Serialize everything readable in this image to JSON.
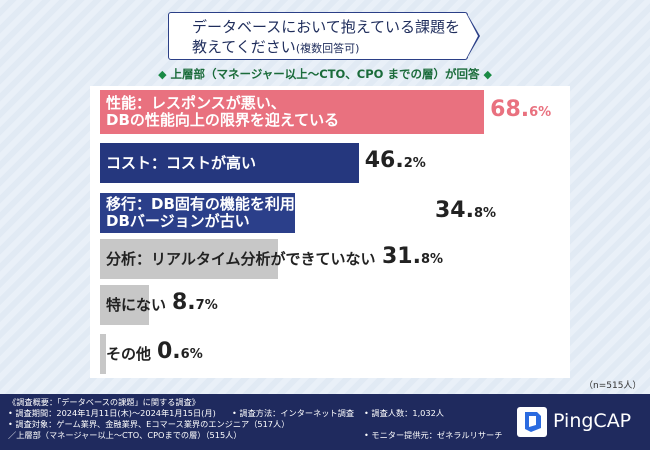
{
  "header": {
    "title_line1": "データベースにおいて抱えている課題を",
    "title_line2_main": "教えてください",
    "title_line2_note": "(複数回答可)",
    "subtitle": "上層部（マネージャー以上〜CTO、CPO までの層）が回答",
    "diamond": "◆"
  },
  "chart_data": {
    "type": "bar",
    "orientation": "horizontal",
    "categories": [
      "性能：レスポンスが悪い、DBの性能向上の限界を迎えている",
      "コスト：コストが高い",
      "移行：DB固有の機能を利用して移行が難しい、DBバージョンが古い",
      "分析：リアルタイム分析ができていない",
      "特にない",
      "その他"
    ],
    "values": [
      68.6,
      46.2,
      34.8,
      31.8,
      8.7,
      0.6
    ],
    "unit": "%",
    "xlim": [
      0,
      100
    ],
    "colors": [
      "#e9717f",
      "#25377e",
      "#2b3f8a",
      "#c7c7c7",
      "#c7c7c7",
      "#c7c7c7"
    ],
    "grid": false,
    "legend": "none"
  },
  "bars": [
    {
      "label_lines": [
        "性能：レスポンスが悪い、",
        "DBの性能向上の限界を迎えている"
      ],
      "pct_int": "68.",
      "pct_dec": "6%",
      "pct_color": "#e9717f"
    },
    {
      "label_lines": [
        "コスト：コストが高い"
      ],
      "pct_int": "46.",
      "pct_dec": "2%",
      "pct_color": "#222222"
    },
    {
      "label_lines": [
        "移行：DB固有の機能を利用して移行が難しい、",
        "DBバージョンが古い"
      ],
      "pct_int": "34.",
      "pct_dec": "8%",
      "pct_color": "#222222"
    },
    {
      "label_lines": [
        "分析：リアルタイム分析ができていない"
      ],
      "pct_int": "31.",
      "pct_dec": "8%",
      "pct_color": "#222222"
    },
    {
      "label_lines": [
        "特にない"
      ],
      "pct_int": "8.",
      "pct_dec": "7%",
      "pct_color": "#222222"
    },
    {
      "label_lines": [
        "その他"
      ],
      "pct_int": "0.",
      "pct_dec": "6%",
      "pct_color": "#222222"
    }
  ],
  "n_note": "（n=515人）",
  "footer": {
    "line1": "《調査概要：「データベースの課題」に関する調査》",
    "period": "• 調査期間：2024年1月11日(木)〜2024年1月15日(月)",
    "method": "• 調査方法：インターネット調査",
    "count": "• 調査人数：1,032人",
    "target": "• 調査対象：ゲーム業界、金融業界、Eコマース業界のエンジニア（517人）",
    "target2": "／上層部（マネージャー以上〜CTO、CPOまでの層）（515人）",
    "provider": "• モニター提供元：ゼネラルリサーチ",
    "logo": "PingCAP",
    "brand_color": "#1f2a5e"
  }
}
